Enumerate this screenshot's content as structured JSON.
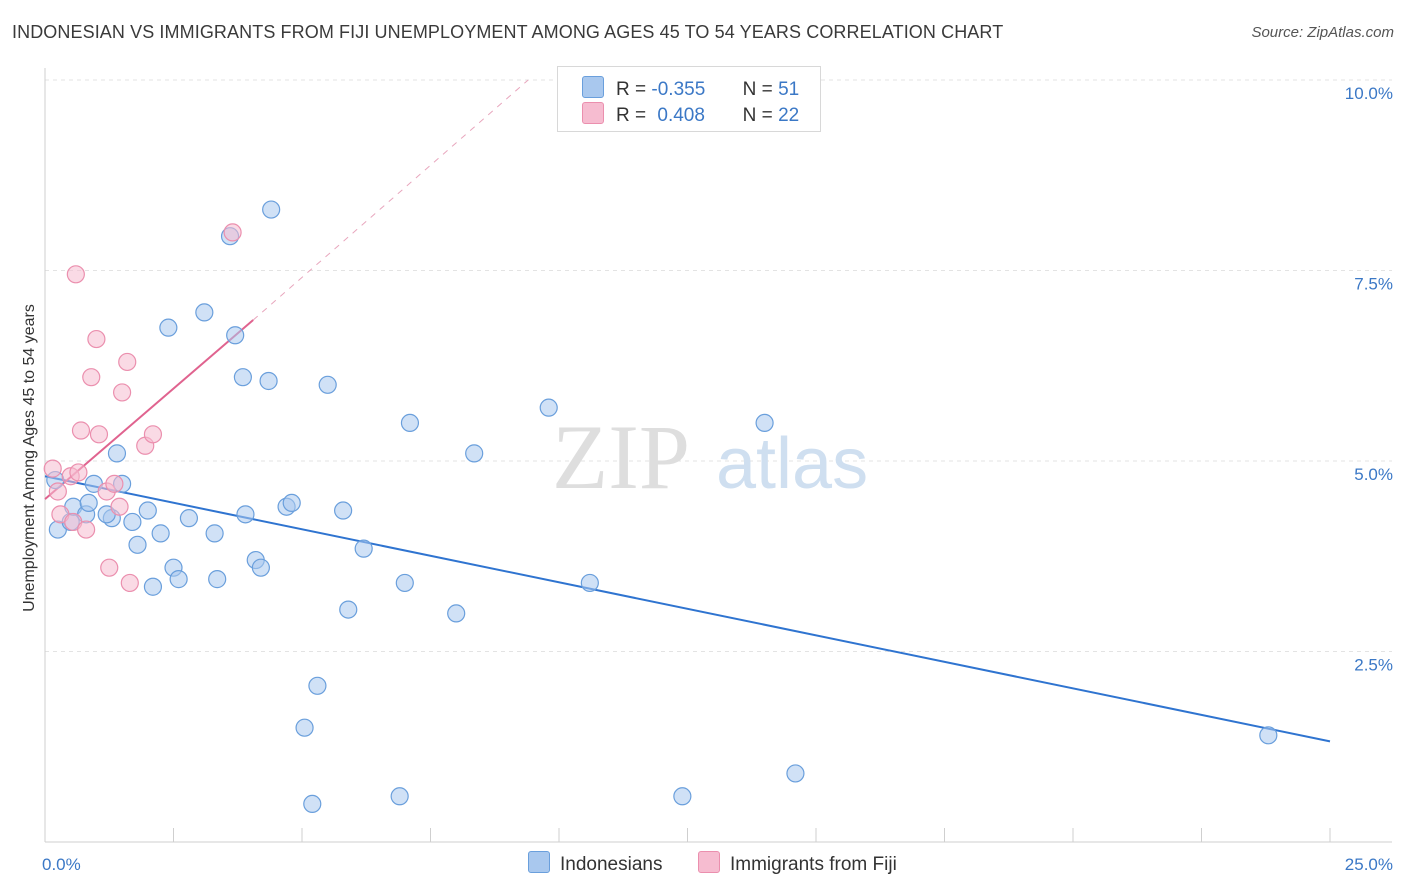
{
  "title": "INDONESIAN VS IMMIGRANTS FROM FIJI UNEMPLOYMENT AMONG AGES 45 TO 54 YEARS CORRELATION CHART",
  "source": "Source: ZipAtlas.com",
  "watermark": {
    "zip": "ZIP",
    "atlas": "atlas"
  },
  "colors": {
    "blue_fill": "#a9c8ee",
    "blue_stroke": "#6a9fdc",
    "blue_line": "#2f74d0",
    "pink_fill": "#f6bcd0",
    "pink_stroke": "#eb8fae",
    "pink_line": "#e0638f",
    "tick_text": "#3b78c6",
    "grid": "#e3e3e3"
  },
  "legend": {
    "rows": [
      {
        "r_label": "R =",
        "r_value": "-0.355",
        "n_label": "N =",
        "n_value": "51"
      },
      {
        "r_label": "R =",
        "r_value": "0.408",
        "n_label": "N =",
        "n_value": "22"
      }
    ]
  },
  "bottom_legend": {
    "series1": "Indonesians",
    "series2": "Immigrants from Fiji"
  },
  "chart_data": {
    "type": "scatter",
    "xlabel": "",
    "ylabel": "Unemployment Among Ages 45 to 54 years",
    "xlim": [
      0,
      25
    ],
    "ylim": [
      0,
      10
    ],
    "x_tick_labels": [
      {
        "value": 0,
        "label": "0.0%"
      },
      {
        "value": 25,
        "label": "25.0%"
      }
    ],
    "y_tick_labels": [
      {
        "value": 2.5,
        "label": "2.5%"
      },
      {
        "value": 5.0,
        "label": "5.0%"
      },
      {
        "value": 7.5,
        "label": "7.5%"
      },
      {
        "value": 10.0,
        "label": "10.0%"
      }
    ],
    "series": [
      {
        "name": "Indonesians",
        "points": [
          [
            0.2,
            4.75
          ],
          [
            0.25,
            4.1
          ],
          [
            0.5,
            4.2
          ],
          [
            0.55,
            4.4
          ],
          [
            0.8,
            4.3
          ],
          [
            0.85,
            4.45
          ],
          [
            0.95,
            4.7
          ],
          [
            1.3,
            4.25
          ],
          [
            1.4,
            5.1
          ],
          [
            1.5,
            4.7
          ],
          [
            1.7,
            4.2
          ],
          [
            1.8,
            3.9
          ],
          [
            2.0,
            4.35
          ],
          [
            2.1,
            3.35
          ],
          [
            2.25,
            4.05
          ],
          [
            2.4,
            6.75
          ],
          [
            2.5,
            3.6
          ],
          [
            2.6,
            3.45
          ],
          [
            2.8,
            4.25
          ],
          [
            3.1,
            6.95
          ],
          [
            3.3,
            4.05
          ],
          [
            3.35,
            3.45
          ],
          [
            3.6,
            7.95
          ],
          [
            3.7,
            6.65
          ],
          [
            3.85,
            6.1
          ],
          [
            3.9,
            4.3
          ],
          [
            4.1,
            3.7
          ],
          [
            4.2,
            3.6
          ],
          [
            4.4,
            8.3
          ],
          [
            4.35,
            6.05
          ],
          [
            4.7,
            4.4
          ],
          [
            4.8,
            4.45
          ],
          [
            5.05,
            1.5
          ],
          [
            5.2,
            0.5
          ],
          [
            5.3,
            2.05
          ],
          [
            5.5,
            6.0
          ],
          [
            5.8,
            4.35
          ],
          [
            5.9,
            3.05
          ],
          [
            6.2,
            3.85
          ],
          [
            6.9,
            0.6
          ],
          [
            7.0,
            3.4
          ],
          [
            7.1,
            5.5
          ],
          [
            8.0,
            3.0
          ],
          [
            8.35,
            5.1
          ],
          [
            9.8,
            5.7
          ],
          [
            10.6,
            3.4
          ],
          [
            12.4,
            0.6
          ],
          [
            14.0,
            5.5
          ],
          [
            14.6,
            0.9
          ],
          [
            23.8,
            1.4
          ],
          [
            1.2,
            4.3
          ]
        ],
        "trend": {
          "x0": 0,
          "y0": 4.8,
          "x1": 25,
          "y1": 1.32
        }
      },
      {
        "name": "Immigrants from Fiji",
        "points": [
          [
            0.15,
            4.9
          ],
          [
            0.3,
            4.3
          ],
          [
            0.5,
            4.8
          ],
          [
            0.55,
            4.2
          ],
          [
            0.6,
            7.45
          ],
          [
            0.65,
            4.85
          ],
          [
            0.7,
            5.4
          ],
          [
            0.8,
            4.1
          ],
          [
            0.9,
            6.1
          ],
          [
            1.0,
            6.6
          ],
          [
            1.05,
            5.35
          ],
          [
            1.2,
            4.6
          ],
          [
            1.25,
            3.6
          ],
          [
            1.35,
            4.7
          ],
          [
            1.45,
            4.4
          ],
          [
            1.5,
            5.9
          ],
          [
            1.6,
            6.3
          ],
          [
            1.65,
            3.4
          ],
          [
            1.95,
            5.2
          ],
          [
            2.1,
            5.35
          ],
          [
            3.65,
            8.0
          ],
          [
            0.25,
            4.6
          ]
        ],
        "trend": {
          "x0": 0,
          "y0": 4.5,
          "x1": 4.05,
          "y1": 6.85,
          "dash_x1": 9.4,
          "dash_y1": 10.0
        }
      }
    ]
  }
}
